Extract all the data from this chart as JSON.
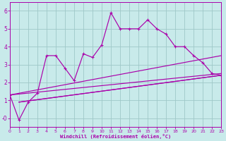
{
  "background_color": "#c8eaea",
  "grid_color": "#9fc8c8",
  "line_color": "#aa00aa",
  "xlabel": "Windchill (Refroidissement éolien,°C)",
  "xlim": [
    0,
    23
  ],
  "ylim": [
    -0.5,
    6.5
  ],
  "yticks": [
    0,
    1,
    2,
    3,
    4,
    5,
    6
  ],
  "xticks": [
    0,
    1,
    2,
    3,
    4,
    5,
    6,
    7,
    8,
    9,
    10,
    11,
    12,
    13,
    14,
    15,
    16,
    17,
    18,
    19,
    20,
    21,
    22,
    23
  ],
  "main_x": [
    0,
    1,
    2,
    3,
    4,
    5,
    6,
    7,
    8,
    9,
    10,
    11,
    12,
    13,
    14,
    15,
    16,
    17,
    18,
    19,
    20,
    21,
    22,
    23
  ],
  "main_y": [
    1.3,
    -0.1,
    0.9,
    1.4,
    3.5,
    3.5,
    2.8,
    2.1,
    3.6,
    3.4,
    4.1,
    5.9,
    5.0,
    5.0,
    5.0,
    5.5,
    5.0,
    4.7,
    4.0,
    4.0,
    3.5,
    3.1,
    2.5,
    2.4
  ],
  "linear_lines": [
    {
      "x": [
        0,
        23
      ],
      "y": [
        1.3,
        3.5
      ]
    },
    {
      "x": [
        0,
        23
      ],
      "y": [
        1.3,
        2.5
      ]
    },
    {
      "x": [
        1,
        23
      ],
      "y": [
        0.9,
        2.4
      ]
    },
    {
      "x": [
        1,
        23
      ],
      "y": [
        0.9,
        2.4
      ]
    }
  ]
}
